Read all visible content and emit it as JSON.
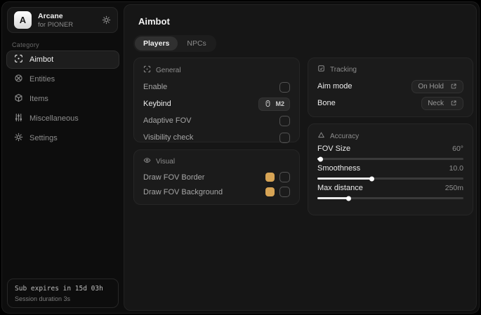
{
  "app": {
    "logo_letter": "A",
    "name": "Arcane",
    "subtitle": "for PIONER"
  },
  "sidebar": {
    "category_label": "Category",
    "items": [
      {
        "label": "Aimbot",
        "icon": "crosshair-icon",
        "active": true
      },
      {
        "label": "Entities",
        "icon": "entities-icon",
        "active": false
      },
      {
        "label": "Items",
        "icon": "package-icon",
        "active": false
      },
      {
        "label": "Miscellaneous",
        "icon": "sliders-icon",
        "active": false
      },
      {
        "label": "Settings",
        "icon": "gear-icon",
        "active": false
      }
    ],
    "footer": {
      "sub_expiry": "Sub expires in 15d 03h",
      "session_duration": "Session duration 3s"
    }
  },
  "main": {
    "title": "Aimbot",
    "tabs": [
      {
        "label": "Players",
        "active": true
      },
      {
        "label": "NPCs",
        "active": false
      }
    ],
    "cards": {
      "general": {
        "title": "General",
        "rows": [
          {
            "label": "Enable",
            "control": "checkbox",
            "checked": false
          },
          {
            "label": "Keybind",
            "control": "keybind",
            "value": "M2"
          },
          {
            "label": "Adaptive FOV",
            "control": "checkbox",
            "checked": false
          },
          {
            "label": "Visibility check",
            "control": "checkbox",
            "checked": false
          }
        ]
      },
      "visual": {
        "title": "Visual",
        "rows": [
          {
            "label": "Draw FOV Border",
            "control": "color-checkbox",
            "color": "#d7a455",
            "checked": false
          },
          {
            "label": "Draw FOV Background",
            "control": "color-checkbox",
            "color": "#d7a455",
            "checked": false
          }
        ]
      },
      "tracking": {
        "title": "Tracking",
        "rows": [
          {
            "label": "Aim mode",
            "value": "On Hold"
          },
          {
            "label": "Bone",
            "value": "Neck"
          }
        ]
      },
      "accuracy": {
        "title": "Accuracy",
        "sliders": [
          {
            "label": "FOV Size",
            "value": "60°",
            "percent": 2
          },
          {
            "label": "Smoothness",
            "value": "10.0",
            "percent": 37
          },
          {
            "label": "Max distance",
            "value": "250m",
            "percent": 21
          }
        ]
      }
    }
  },
  "colors": {
    "accent_swatch": "#d7a455"
  }
}
